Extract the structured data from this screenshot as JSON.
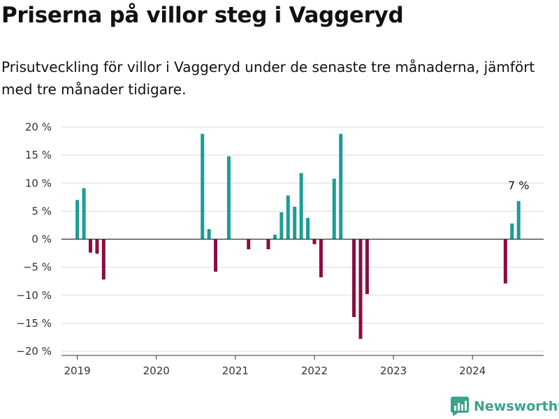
{
  "title": "Priserna på villor steg i Vaggeryd",
  "subtitle": "Prisutveckling för villor i Vaggeryd under de senaste tre månaderna, jämfört med tre månader tidigare.",
  "brand": "Newsworthy",
  "colors": {
    "positive": "#1a9e96",
    "negative": "#8c0b42",
    "grid": "#dddddd",
    "axis": "#333333",
    "brand": "#3aa28d"
  },
  "chart_data": {
    "type": "bar",
    "ylim": [
      -20,
      20
    ],
    "y_ticks": [
      20,
      15,
      10,
      5,
      0,
      -5,
      -10,
      -15,
      -20
    ],
    "y_tick_labels": [
      "20 %",
      "15 %",
      "10 %",
      "5 %",
      "0 %",
      "−5 %",
      "−10 %",
      "−15 %",
      "−20 %"
    ],
    "x_ticks": [
      "2019",
      "2020",
      "2021",
      "2022",
      "2023",
      "2024"
    ],
    "xlabel": "",
    "ylabel": "",
    "grid": true,
    "series": [
      {
        "x": [
          "2019-01",
          "2019-02",
          "2019-03",
          "2019-04",
          "2019-05",
          "2020-08",
          "2020-09",
          "2020-10",
          "2020-12",
          "2021-03",
          "2021-06",
          "2021-07",
          "2021-08",
          "2021-09",
          "2021-10",
          "2021-11",
          "2021-12",
          "2022-01",
          "2022-02",
          "2022-04",
          "2022-05",
          "2022-07",
          "2022-08",
          "2022-09",
          "2024-06",
          "2024-07",
          "2024-08"
        ],
        "values": [
          7,
          9.1,
          -2.4,
          -2.6,
          -7.2,
          18.8,
          1.8,
          -5.8,
          14.8,
          -1.8,
          -1.8,
          0.8,
          4.8,
          7.8,
          5.8,
          11.8,
          3.8,
          -0.9,
          -6.8,
          10.8,
          18.8,
          -13.9,
          -17.8,
          -9.8,
          -7.9,
          2.8,
          6.8
        ]
      }
    ],
    "annotations": [
      {
        "x": "2024-08",
        "text": "7 %"
      }
    ]
  }
}
